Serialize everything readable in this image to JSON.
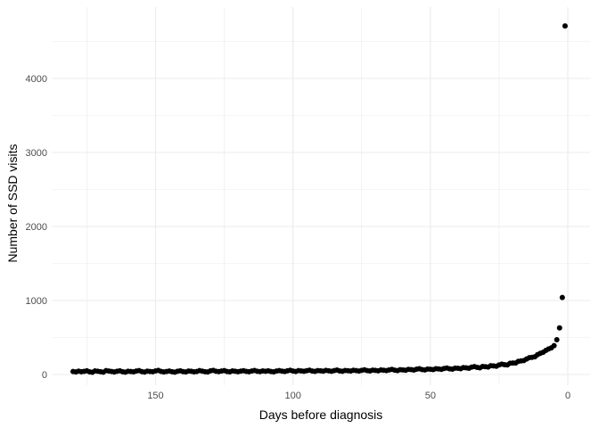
{
  "chart_data": {
    "type": "scatter",
    "title": "",
    "xlabel": "Days before diagnosis",
    "ylabel": "Number of SSD visits",
    "x_reversed": true,
    "xlim": [
      180,
      0
    ],
    "ylim": [
      0,
      4710
    ],
    "x_ticks": [
      150,
      100,
      50,
      0
    ],
    "y_ticks": [
      0,
      1000,
      2000,
      3000,
      4000
    ],
    "grid": true,
    "legend": "none",
    "point_color": "#000000",
    "grid_color": "#ebebeb",
    "points": [
      [
        180,
        40
      ],
      [
        179,
        35
      ],
      [
        178,
        45
      ],
      [
        177,
        38
      ],
      [
        176,
        42
      ],
      [
        175,
        50
      ],
      [
        174,
        36
      ],
      [
        173,
        30
      ],
      [
        172,
        48
      ],
      [
        171,
        44
      ],
      [
        170,
        38
      ],
      [
        169,
        32
      ],
      [
        168,
        52
      ],
      [
        167,
        46
      ],
      [
        166,
        40
      ],
      [
        165,
        35
      ],
      [
        164,
        43
      ],
      [
        163,
        50
      ],
      [
        162,
        38
      ],
      [
        161,
        31
      ],
      [
        160,
        44
      ],
      [
        159,
        40
      ],
      [
        158,
        36
      ],
      [
        157,
        47
      ],
      [
        156,
        52
      ],
      [
        155,
        39
      ],
      [
        154,
        33
      ],
      [
        153,
        45
      ],
      [
        152,
        41
      ],
      [
        151,
        37
      ],
      [
        150,
        48
      ],
      [
        149,
        55
      ],
      [
        148,
        42
      ],
      [
        147,
        34
      ],
      [
        146,
        40
      ],
      [
        145,
        46
      ],
      [
        144,
        38
      ],
      [
        143,
        31
      ],
      [
        142,
        44
      ],
      [
        141,
        50
      ],
      [
        140,
        39
      ],
      [
        139,
        35
      ],
      [
        138,
        47
      ],
      [
        137,
        43
      ],
      [
        136,
        36
      ],
      [
        135,
        41
      ],
      [
        134,
        52
      ],
      [
        133,
        45
      ],
      [
        132,
        38
      ],
      [
        131,
        34
      ],
      [
        130,
        49
      ],
      [
        129,
        56
      ],
      [
        128,
        43
      ],
      [
        127,
        39
      ],
      [
        126,
        46
      ],
      [
        125,
        53
      ],
      [
        124,
        41
      ],
      [
        123,
        36
      ],
      [
        122,
        48
      ],
      [
        121,
        44
      ],
      [
        120,
        38
      ],
      [
        119,
        45
      ],
      [
        118,
        51
      ],
      [
        117,
        42
      ],
      [
        116,
        37
      ],
      [
        115,
        46
      ],
      [
        114,
        54
      ],
      [
        113,
        43
      ],
      [
        112,
        39
      ],
      [
        111,
        48
      ],
      [
        110,
        44
      ],
      [
        109,
        50
      ],
      [
        108,
        41
      ],
      [
        107,
        36
      ],
      [
        106,
        47
      ],
      [
        105,
        53
      ],
      [
        104,
        45
      ],
      [
        103,
        40
      ],
      [
        102,
        49
      ],
      [
        101,
        57
      ],
      [
        100,
        46
      ],
      [
        99,
        41
      ],
      [
        98,
        52
      ],
      [
        97,
        48
      ],
      [
        96,
        43
      ],
      [
        95,
        51
      ],
      [
        94,
        58
      ],
      [
        93,
        47
      ],
      [
        92,
        42
      ],
      [
        91,
        53
      ],
      [
        90,
        49
      ],
      [
        89,
        45
      ],
      [
        88,
        55
      ],
      [
        87,
        50
      ],
      [
        86,
        44
      ],
      [
        85,
        52
      ],
      [
        84,
        60
      ],
      [
        83,
        48
      ],
      [
        82,
        43
      ],
      [
        81,
        54
      ],
      [
        80,
        51
      ],
      [
        79,
        46
      ],
      [
        78,
        57
      ],
      [
        77,
        52
      ],
      [
        76,
        47
      ],
      [
        75,
        56
      ],
      [
        74,
        63
      ],
      [
        73,
        53
      ],
      [
        72,
        48
      ],
      [
        71,
        58
      ],
      [
        70,
        55
      ],
      [
        69,
        50
      ],
      [
        68,
        61
      ],
      [
        67,
        57
      ],
      [
        66,
        52
      ],
      [
        65,
        62
      ],
      [
        64,
        69
      ],
      [
        63,
        58
      ],
      [
        62,
        53
      ],
      [
        61,
        65
      ],
      [
        60,
        62
      ],
      [
        59,
        57
      ],
      [
        58,
        70
      ],
      [
        57,
        66
      ],
      [
        56,
        60
      ],
      [
        55,
        72
      ],
      [
        54,
        78
      ],
      [
        53,
        66
      ],
      [
        52,
        61
      ],
      [
        51,
        74
      ],
      [
        50,
        71
      ],
      [
        49,
        66
      ],
      [
        48,
        79
      ],
      [
        47,
        75
      ],
      [
        46,
        69
      ],
      [
        45,
        82
      ],
      [
        44,
        88
      ],
      [
        43,
        77
      ],
      [
        42,
        72
      ],
      [
        41,
        86
      ],
      [
        40,
        84
      ],
      [
        39,
        79
      ],
      [
        38,
        94
      ],
      [
        37,
        90
      ],
      [
        36,
        84
      ],
      [
        35,
        99
      ],
      [
        34,
        107
      ],
      [
        33,
        96
      ],
      [
        32,
        91
      ],
      [
        31,
        108
      ],
      [
        30,
        106
      ],
      [
        29,
        101
      ],
      [
        28,
        119
      ],
      [
        27,
        116
      ],
      [
        26,
        112
      ],
      [
        25,
        130
      ],
      [
        24,
        140
      ],
      [
        23,
        133
      ],
      [
        22,
        130
      ],
      [
        21,
        152
      ],
      [
        20,
        155
      ],
      [
        19,
        155
      ],
      [
        18,
        178
      ],
      [
        17,
        183
      ],
      [
        16,
        188
      ],
      [
        15,
        210
      ],
      [
        14,
        228
      ],
      [
        13,
        232
      ],
      [
        12,
        240
      ],
      [
        11,
        268
      ],
      [
        10,
        286
      ],
      [
        9,
        300
      ],
      [
        8,
        325
      ],
      [
        7,
        345
      ],
      [
        6,
        360
      ],
      [
        5,
        390
      ],
      [
        4,
        470
      ],
      [
        3,
        630
      ],
      [
        2,
        1040
      ],
      [
        1,
        4710
      ]
    ]
  }
}
